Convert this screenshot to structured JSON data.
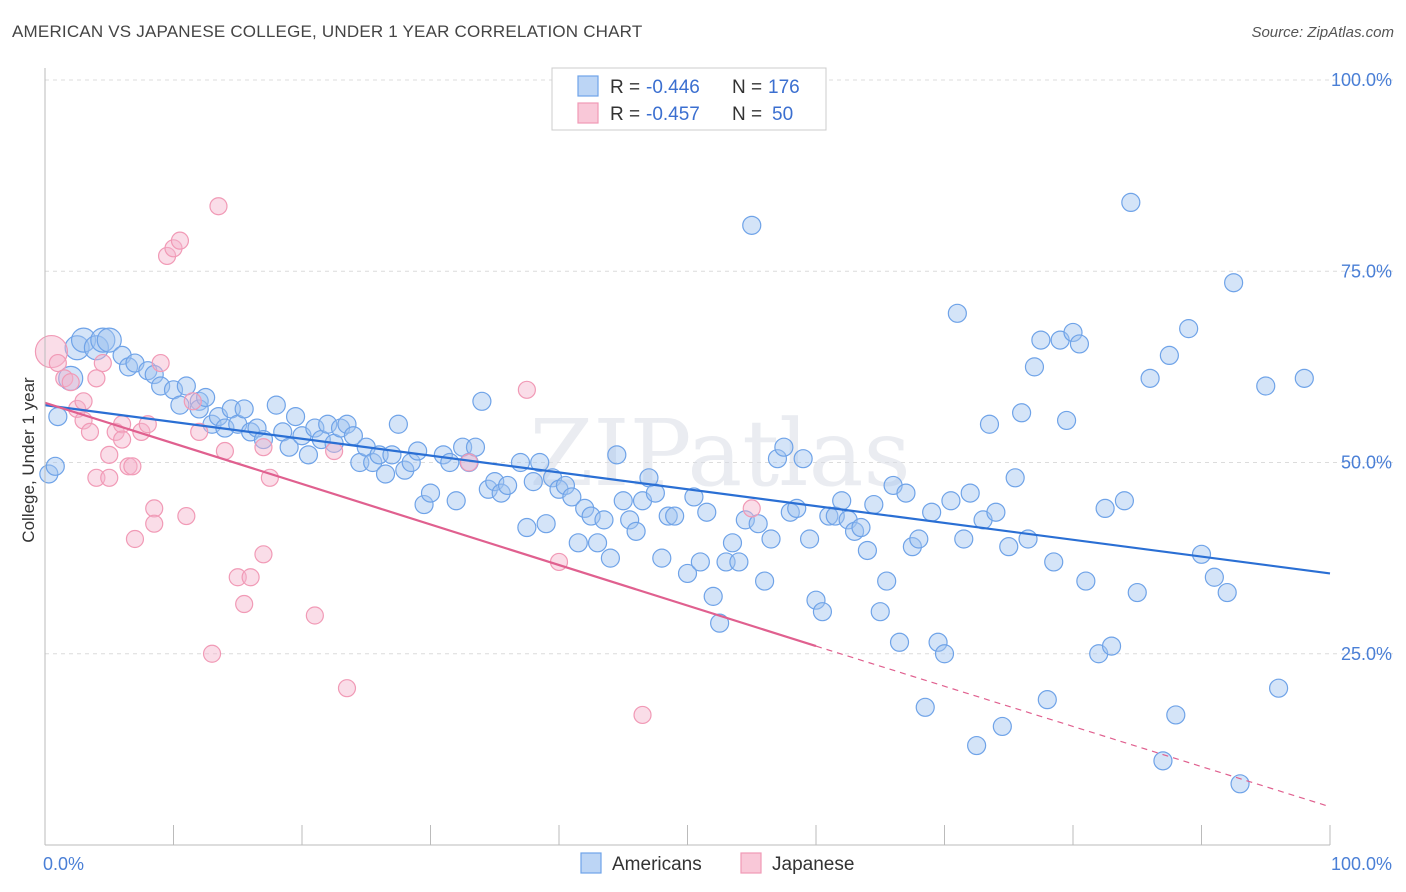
{
  "title": "AMERICAN VS JAPANESE COLLEGE, UNDER 1 YEAR CORRELATION CHART",
  "source": "Source: ZipAtlas.com",
  "watermark": "ZIPatlas",
  "colors": {
    "americans": "#6fa3e8",
    "americans_line": "#2a6fd4",
    "japanese": "#f19ab6",
    "japanese_line": "#e0608f",
    "axis_label": "#4a7fd6"
  },
  "legend": {
    "rows": [
      {
        "r_label": "R =",
        "r_value": "-0.446",
        "n_label": "N =",
        "n_value": "176"
      },
      {
        "r_label": "R =",
        "r_value": "-0.457",
        "n_label": "N =",
        "n_value": "50"
      }
    ]
  },
  "bottom_legend": [
    "Americans",
    "Japanese"
  ],
  "chart_data": {
    "type": "scatter",
    "xlabel": "",
    "ylabel": "College, Under 1 year",
    "xlim": [
      0,
      100
    ],
    "ylim": [
      0,
      100
    ],
    "x_tick_labels": [
      "0.0%",
      "100.0%"
    ],
    "y_tick_labels": [
      "25.0%",
      "50.0%",
      "75.0%",
      "100.0%"
    ],
    "y_ticks": [
      25,
      50,
      75,
      100
    ],
    "grid": true,
    "legend_position": "top-center",
    "series": [
      {
        "name": "Americans",
        "r": -0.446,
        "n": 176,
        "trend": {
          "x": [
            0,
            100
          ],
          "y": [
            57.5,
            35.5
          ],
          "dashed_from": null
        },
        "points": [
          [
            0.3,
            48.5
          ],
          [
            0.8,
            49.5
          ],
          [
            1,
            56
          ],
          [
            2,
            61
          ],
          [
            2.5,
            65
          ],
          [
            3,
            66
          ],
          [
            4,
            65
          ],
          [
            4.5,
            66
          ],
          [
            5,
            66
          ],
          [
            6,
            64
          ],
          [
            6.5,
            62.5
          ],
          [
            7,
            63
          ],
          [
            8,
            62
          ],
          [
            8.5,
            61.5
          ],
          [
            9,
            60
          ],
          [
            10,
            59.5
          ],
          [
            10.5,
            57.5
          ],
          [
            11,
            60
          ],
          [
            12,
            58
          ],
          [
            12,
            57
          ],
          [
            12.5,
            58.5
          ],
          [
            13,
            55
          ],
          [
            13.5,
            56
          ],
          [
            14,
            54.5
          ],
          [
            14.5,
            57
          ],
          [
            15,
            55
          ],
          [
            15.5,
            57
          ],
          [
            16,
            54
          ],
          [
            16.5,
            54.5
          ],
          [
            17,
            53
          ],
          [
            18,
            57.5
          ],
          [
            18.5,
            54
          ],
          [
            19,
            52
          ],
          [
            19.5,
            56
          ],
          [
            20,
            53.5
          ],
          [
            20.5,
            51
          ],
          [
            21,
            54.5
          ],
          [
            21.5,
            53
          ],
          [
            22,
            55
          ],
          [
            22.5,
            52.5
          ],
          [
            23,
            54.5
          ],
          [
            23.5,
            55
          ],
          [
            24,
            53.5
          ],
          [
            24.5,
            50
          ],
          [
            25,
            52
          ],
          [
            25.5,
            50
          ],
          [
            26,
            51
          ],
          [
            26.5,
            48.5
          ],
          [
            27,
            51
          ],
          [
            27.5,
            55
          ],
          [
            28,
            49
          ],
          [
            28.5,
            50
          ],
          [
            29,
            51.5
          ],
          [
            29.5,
            44.5
          ],
          [
            30,
            46
          ],
          [
            31,
            51
          ],
          [
            31.5,
            50
          ],
          [
            32,
            45
          ],
          [
            32.5,
            52
          ],
          [
            33,
            50
          ],
          [
            33.5,
            52
          ],
          [
            34,
            58
          ],
          [
            34.5,
            46.5
          ],
          [
            35,
            47.5
          ],
          [
            35.5,
            46
          ],
          [
            36,
            47
          ],
          [
            37,
            50
          ],
          [
            37.5,
            41.5
          ],
          [
            38,
            47.5
          ],
          [
            38.5,
            50
          ],
          [
            39,
            42
          ],
          [
            39.5,
            48
          ],
          [
            40,
            46.5
          ],
          [
            40.5,
            47
          ],
          [
            41,
            45.5
          ],
          [
            41.5,
            39.5
          ],
          [
            42,
            44
          ],
          [
            42.5,
            43
          ],
          [
            43,
            39.5
          ],
          [
            43.5,
            42.5
          ],
          [
            44,
            37.5
          ],
          [
            44.5,
            51
          ],
          [
            45,
            45
          ],
          [
            45.5,
            42.5
          ],
          [
            46,
            41
          ],
          [
            46.5,
            45
          ],
          [
            47,
            48
          ],
          [
            47.5,
            46
          ],
          [
            48,
            37.5
          ],
          [
            48.5,
            43
          ],
          [
            49,
            43
          ],
          [
            50,
            35.5
          ],
          [
            50.5,
            45.5
          ],
          [
            51,
            37
          ],
          [
            51.5,
            43.5
          ],
          [
            52,
            32.5
          ],
          [
            52.5,
            29
          ],
          [
            53,
            37
          ],
          [
            53.5,
            39.5
          ],
          [
            54,
            37
          ],
          [
            54.5,
            42.5
          ],
          [
            55,
            81
          ],
          [
            55.5,
            42
          ],
          [
            56,
            34.5
          ],
          [
            56.5,
            40
          ],
          [
            57,
            50.5
          ],
          [
            57.5,
            52
          ],
          [
            58,
            43.5
          ],
          [
            58.5,
            44
          ],
          [
            59,
            50.5
          ],
          [
            59.5,
            40
          ],
          [
            60,
            32
          ],
          [
            60.5,
            30.5
          ],
          [
            61,
            43
          ],
          [
            61.5,
            43
          ],
          [
            62,
            45
          ],
          [
            62.5,
            42.5
          ],
          [
            63,
            41
          ],
          [
            63.5,
            41.5
          ],
          [
            64,
            38.5
          ],
          [
            64.5,
            44.5
          ],
          [
            65,
            30.5
          ],
          [
            65.5,
            34.5
          ],
          [
            66,
            47
          ],
          [
            66.5,
            26.5
          ],
          [
            67,
            46
          ],
          [
            67.5,
            39
          ],
          [
            68,
            40
          ],
          [
            68.5,
            18
          ],
          [
            69,
            43.5
          ],
          [
            69.5,
            26.5
          ],
          [
            70,
            25
          ],
          [
            70.5,
            45
          ],
          [
            71,
            69.5
          ],
          [
            71.5,
            40
          ],
          [
            72,
            46
          ],
          [
            72.5,
            13
          ],
          [
            73,
            42.5
          ],
          [
            73.5,
            55
          ],
          [
            74,
            43.5
          ],
          [
            74.5,
            15.5
          ],
          [
            75,
            39
          ],
          [
            75.5,
            48
          ],
          [
            76,
            56.5
          ],
          [
            76.5,
            40
          ],
          [
            77,
            62.5
          ],
          [
            77.5,
            66
          ],
          [
            78,
            19
          ],
          [
            78.5,
            37
          ],
          [
            79,
            66
          ],
          [
            79.5,
            55.5
          ],
          [
            80,
            67
          ],
          [
            80.5,
            65.5
          ],
          [
            81,
            34.5
          ],
          [
            82,
            25
          ],
          [
            82.5,
            44
          ],
          [
            83,
            26
          ],
          [
            84,
            45
          ],
          [
            84.5,
            84
          ],
          [
            85,
            33
          ],
          [
            86,
            61
          ],
          [
            87,
            11
          ],
          [
            87.5,
            64
          ],
          [
            88,
            17
          ],
          [
            89,
            67.5
          ],
          [
            90,
            38
          ],
          [
            91,
            35
          ],
          [
            92,
            33
          ],
          [
            92.5,
            73.5
          ],
          [
            93,
            8
          ],
          [
            95,
            60
          ],
          [
            96,
            20.5
          ],
          [
            98,
            61
          ]
        ]
      },
      {
        "name": "Japanese",
        "r": -0.457,
        "n": 50,
        "trend": {
          "x": [
            0,
            60
          ],
          "y": [
            57.8,
            26.0
          ],
          "dashed_to": [
            100,
            5
          ]
        },
        "points": [
          [
            0.5,
            64.5
          ],
          [
            1,
            63
          ],
          [
            1.5,
            61
          ],
          [
            2,
            60.5
          ],
          [
            2.5,
            57
          ],
          [
            3,
            58
          ],
          [
            3,
            55.5
          ],
          [
            3.5,
            54
          ],
          [
            4,
            61
          ],
          [
            4,
            48
          ],
          [
            4.5,
            63
          ],
          [
            5,
            51
          ],
          [
            5,
            48
          ],
          [
            5.5,
            54
          ],
          [
            6,
            55
          ],
          [
            6,
            53
          ],
          [
            6.5,
            49.5
          ],
          [
            6.8,
            49.5
          ],
          [
            7,
            40
          ],
          [
            7.5,
            54
          ],
          [
            8,
            55
          ],
          [
            8.5,
            44
          ],
          [
            8.5,
            42
          ],
          [
            9,
            63
          ],
          [
            9.5,
            77
          ],
          [
            10,
            78
          ],
          [
            10.5,
            79
          ],
          [
            11,
            43
          ],
          [
            11.5,
            58
          ],
          [
            12,
            54
          ],
          [
            13,
            25
          ],
          [
            13.5,
            83.5
          ],
          [
            14,
            51.5
          ],
          [
            15,
            35
          ],
          [
            15.5,
            31.5
          ],
          [
            16,
            35
          ],
          [
            17,
            52
          ],
          [
            17,
            38
          ],
          [
            17.5,
            48
          ],
          [
            21,
            30
          ],
          [
            22.5,
            51.5
          ],
          [
            23.5,
            20.5
          ],
          [
            33,
            50
          ],
          [
            37.5,
            59.5
          ],
          [
            40,
            37
          ],
          [
            46.5,
            17
          ],
          [
            55,
            44
          ]
        ]
      }
    ]
  }
}
